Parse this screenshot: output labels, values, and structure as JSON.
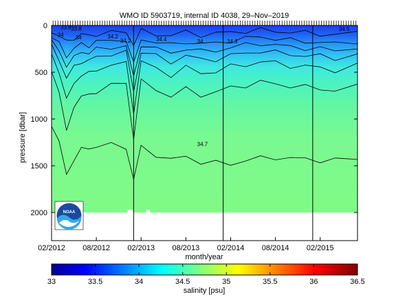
{
  "chart_data": [
    {
      "type": "heatmap",
      "title": "WMO ID 5903719, internal ID 4038, 29–Nov–2019",
      "xlabel": "month/year",
      "ylabel": "pressure [dbar]",
      "x_tick_labels": [
        "02/2012",
        "08/2012",
        "02/2013",
        "08/2013",
        "02/2014",
        "08/2014",
        "02/2015"
      ],
      "x_ticks_months": [
        0,
        6,
        12,
        18,
        24,
        30,
        36
      ],
      "x_range_months": [
        0,
        41
      ],
      "y_tick_labels": [
        "0",
        "500",
        "1000",
        "1500",
        "2000"
      ],
      "y_ticks": [
        0,
        500,
        1000,
        1500,
        2000
      ],
      "ylim": [
        2300,
        0
      ],
      "y_reversed": true,
      "profile_max_pressure": 2000,
      "year_boundaries_months": [
        11,
        23,
        35
      ],
      "contour_labels": [
        "33.8",
        "33.8",
        "34",
        "34",
        "34.2",
        "34.2",
        "34.4",
        "34",
        "34.3",
        "34.5",
        "34.7"
      ],
      "bottom_contour_label": "34.7",
      "contours": [
        {
          "level": 34.0,
          "depth_months": [
            0,
            1,
            2,
            3,
            4,
            5,
            6,
            8,
            10,
            11,
            12,
            14,
            16,
            18,
            20,
            22,
            24,
            26,
            28,
            30,
            32,
            34,
            36,
            38,
            41
          ],
          "depth": [
            60,
            110,
            180,
            130,
            100,
            110,
            90,
            80,
            70,
            200,
            60,
            90,
            110,
            70,
            100,
            90,
            70,
            60,
            50,
            60,
            70,
            80,
            90,
            100,
            80
          ]
        },
        {
          "level": 34.2,
          "depth": [
            120,
            200,
            320,
            250,
            200,
            210,
            180,
            160,
            150,
            420,
            140,
            180,
            210,
            170,
            200,
            190,
            160,
            140,
            120,
            140,
            160,
            170,
            180,
            200,
            170
          ]
        },
        {
          "level": 34.3,
          "depth": [
            170,
            280,
            420,
            350,
            280,
            290,
            260,
            230,
            220,
            560,
            200,
            250,
            300,
            240,
            280,
            270,
            230,
            210,
            190,
            210,
            230,
            240,
            250,
            270,
            230
          ]
        },
        {
          "level": 34.4,
          "depth": [
            230,
            360,
            560,
            450,
            380,
            380,
            340,
            300,
            290,
            700,
            280,
            330,
            390,
            320,
            370,
            360,
            320,
            300,
            270,
            290,
            310,
            320,
            330,
            350,
            310
          ]
        },
        {
          "level": 34.5,
          "depth": [
            320,
            480,
            800,
            620,
            520,
            520,
            470,
            420,
            410,
            920,
            390,
            460,
            530,
            450,
            510,
            490,
            440,
            420,
            390,
            400,
            430,
            440,
            450,
            480,
            430
          ]
        },
        {
          "level": 34.6,
          "depth": [
            480,
            700,
            1150,
            850,
            760,
            750,
            700,
            640,
            620,
            1200,
            600,
            680,
            760,
            680,
            740,
            720,
            660,
            640,
            610,
            620,
            650,
            660,
            670,
            700,
            650
          ]
        },
        {
          "level": 34.7,
          "depth": [
            1050,
            1250,
            1600,
            1420,
            1330,
            1310,
            1290,
            1280,
            1300,
            1650,
            1300,
            1380,
            1440,
            1400,
            1460,
            1470,
            1480,
            1440,
            1420,
            1410,
            1420,
            1430,
            1440,
            1440,
            1430
          ]
        }
      ],
      "colorbar": {
        "label": "salinity [psu]",
        "range": [
          33,
          36.5
        ],
        "tick_labels": [
          "33",
          "33.5",
          "34",
          "34.5",
          "35",
          "35.5",
          "36",
          "36.5"
        ],
        "ticks": [
          33,
          33.5,
          34,
          34.5,
          35,
          35.5,
          36,
          36.5
        ]
      }
    }
  ],
  "logo": {
    "text": "NOAA"
  }
}
